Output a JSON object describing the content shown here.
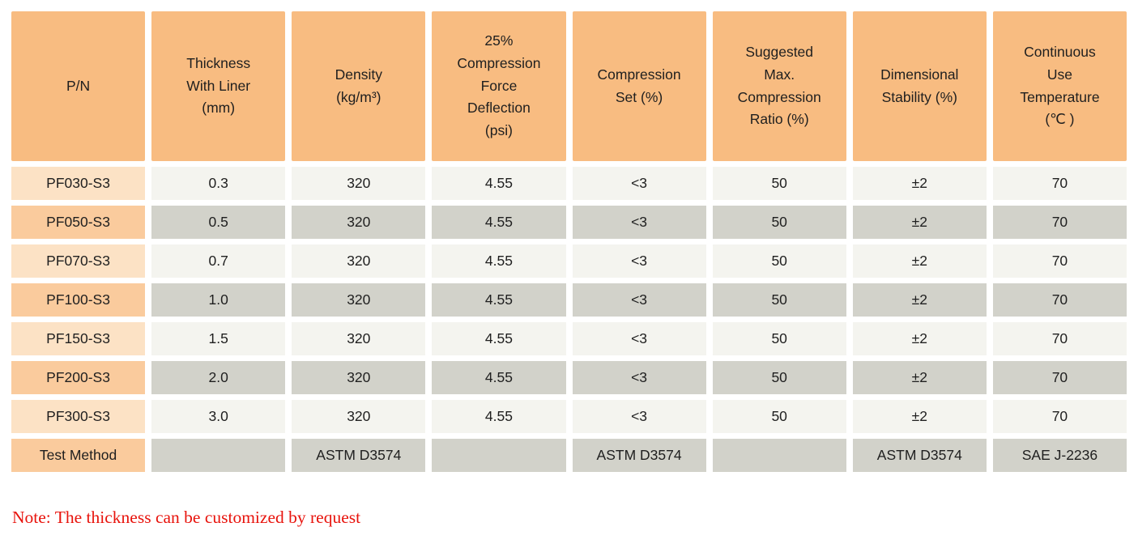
{
  "table": {
    "columns": [
      "P/N",
      "Thickness\nWith Liner\n(mm)",
      "Density\n(kg/m³)",
      "25%\nCompression\nForce\nDeflection\n(psi)",
      "Compression\nSet (%)",
      "Suggested\nMax.\nCompression\nRatio (%)",
      "Dimensional\nStability (%)",
      "Continuous\nUse\nTemperature\n(℃ )"
    ],
    "rows": [
      {
        "label": "PF030-S3",
        "values": [
          "0.3",
          "320",
          "4.55",
          "<3",
          "50",
          "±2",
          "70"
        ]
      },
      {
        "label": "PF050-S3",
        "values": [
          "0.5",
          "320",
          "4.55",
          "<3",
          "50",
          "±2",
          "70"
        ]
      },
      {
        "label": "PF070-S3",
        "values": [
          "0.7",
          "320",
          "4.55",
          "<3",
          "50",
          "±2",
          "70"
        ]
      },
      {
        "label": "PF100-S3",
        "values": [
          "1.0",
          "320",
          "4.55",
          "<3",
          "50",
          "±2",
          "70"
        ]
      },
      {
        "label": "PF150-S3",
        "values": [
          "1.5",
          "320",
          "4.55",
          "<3",
          "50",
          "±2",
          "70"
        ]
      },
      {
        "label": "PF200-S3",
        "values": [
          "2.0",
          "320",
          "4.55",
          "<3",
          "50",
          "±2",
          "70"
        ]
      },
      {
        "label": "PF300-S3",
        "values": [
          "3.0",
          "320",
          "4.55",
          "<3",
          "50",
          "±2",
          "70"
        ]
      }
    ],
    "test_method_row": {
      "label": "Test Method",
      "values": [
        "",
        "ASTM D3574",
        "",
        "ASTM D3574",
        "",
        "ASTM D3574",
        "SAE J-2236"
      ]
    }
  },
  "note": {
    "text": "Note: The thickness can be customized by request"
  },
  "colors": {
    "header_bg": "#F8BC81",
    "pn_row_light": "#FCE2C5",
    "pn_row_dark": "#FACB9D",
    "cell_light": "#F4F4EF",
    "cell_dark": "#D2D2CA",
    "note_red": "#E8130C"
  }
}
